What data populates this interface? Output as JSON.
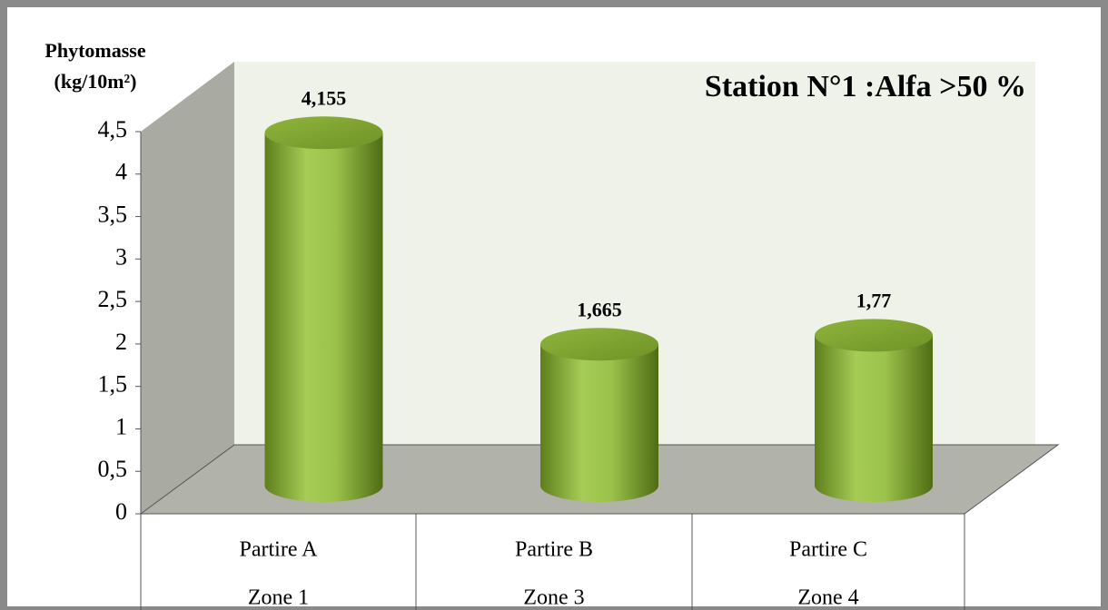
{
  "chart_data": {
    "type": "bar",
    "title": "Station N°1 :Alfa >50 %",
    "ylabel": [
      "Phytomasse",
      "(kg/10m²)"
    ],
    "categories": [
      "Partire A",
      "Partire B",
      "Partire C"
    ],
    "subcategories": [
      "Zone 1",
      "Zone 3",
      "Zone 4"
    ],
    "values": [
      4.155,
      1.665,
      1.77
    ],
    "value_labels": [
      "4,155",
      "1,665",
      "1,77"
    ],
    "color": "#8db33a",
    "ylim": [
      0,
      4.5
    ],
    "yticks": [
      0,
      {
        "value": 0.5,
        "label": "0,5"
      },
      1,
      {
        "value": 1.5,
        "label": "1,5"
      },
      2,
      {
        "value": 2.5,
        "label": "2,5"
      },
      3,
      {
        "value": 3.5,
        "label": "3,5"
      },
      4,
      {
        "value": 4.5,
        "label": "4,5"
      }
    ]
  }
}
